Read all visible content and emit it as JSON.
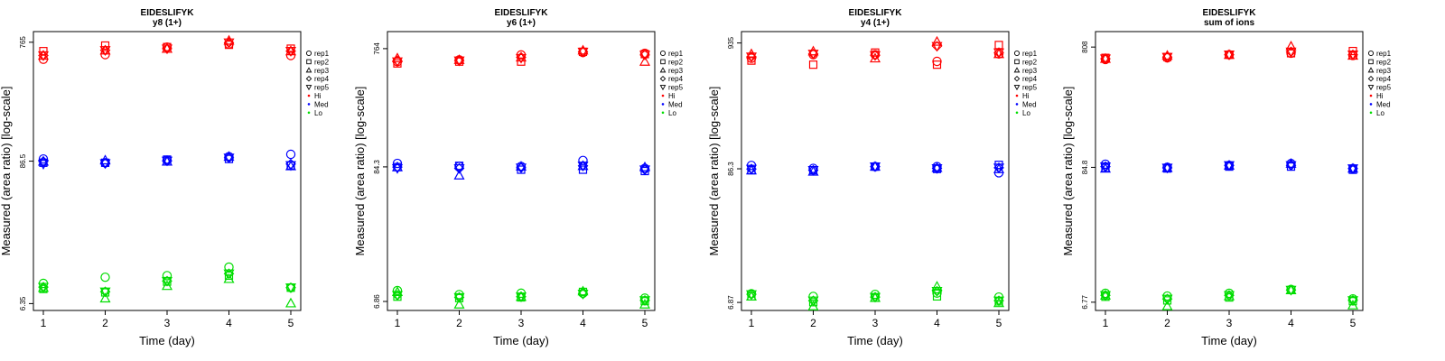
{
  "chart_data": [
    {
      "type": "scatter",
      "title": "EIDESLIFYK",
      "subtitle": "y8 (1+)",
      "xlabel": "Time (day)",
      "ylabel": "Measured (area ratio) [log-scale]",
      "x": [
        1,
        2,
        3,
        4,
        5
      ],
      "y_scale": "log",
      "yticks": [
        "6.35",
        "86.5",
        "765"
      ],
      "ylim": [
        5.6,
        930
      ],
      "legend_position": "right",
      "legend": [
        "rep1",
        "rep2",
        "rep3",
        "rep4",
        "rep5",
        "Hi",
        "Med",
        "Lo"
      ],
      "groups": [
        {
          "name": "Hi",
          "color": "#ff0000",
          "reps": {
            "rep1": [
              560,
              610,
              700,
              740,
              600
            ],
            "rep2": [
              650,
              720,
              700,
              730,
              680
            ],
            "rep3": [
              600,
              660,
              680,
              790,
              650
            ],
            "rep4": [
              600,
              660,
              680,
              760,
              650
            ],
            "rep5": [
              600,
              660,
              680,
              760,
              650
            ]
          }
        },
        {
          "name": "Med",
          "color": "#0000ff",
          "reps": {
            "rep1": [
              90,
              84,
              88,
              94,
              98
            ],
            "rep2": [
              84,
              84,
              89,
              90,
              80
            ],
            "rep3": [
              86,
              88,
              86,
              94,
              79
            ],
            "rep4": [
              86,
              83,
              87,
              92,
              82
            ],
            "rep5": [
              82,
              83,
              87,
              92,
              80
            ]
          }
        },
        {
          "name": "Lo",
          "color": "#00dd00",
          "reps": {
            "rep1": [
              9.2,
              10.3,
              10.6,
              12.4,
              8.5
            ],
            "rep2": [
              8.3,
              7.8,
              9.5,
              10.6,
              8.5
            ],
            "rep3": [
              8.5,
              7.0,
              8.8,
              10.0,
              6.4
            ],
            "rep4": [
              8.6,
              7.9,
              9.6,
              11.0,
              8.5
            ],
            "rep5": [
              8.6,
              7.9,
              9.6,
              11.0,
              8.5
            ]
          }
        }
      ]
    },
    {
      "type": "scatter",
      "title": "EIDESLIFYK",
      "subtitle": "y6 (1+)",
      "xlabel": "Time (day)",
      "ylabel": "Measured (area ratio) [log-scale]",
      "x": [
        1,
        2,
        3,
        4,
        5
      ],
      "y_scale": "log",
      "yticks": [
        "6.86",
        "84.3",
        "764"
      ],
      "ylim": [
        5.8,
        1050
      ],
      "legend_position": "right",
      "legend": [
        "rep1",
        "rep2",
        "rep3",
        "rep4",
        "rep5",
        "Hi",
        "Med",
        "Lo"
      ],
      "groups": [
        {
          "name": "Hi",
          "color": "#ff0000",
          "reps": {
            "rep1": [
              600,
              620,
              680,
              710,
              700
            ],
            "rep2": [
              580,
              600,
              600,
              720,
              690
            ],
            "rep3": [
              640,
              620,
              650,
              740,
              600
            ],
            "rep4": [
              610,
              610,
              650,
              720,
              680
            ],
            "rep5": [
              600,
              610,
              640,
              720,
              680
            ]
          }
        },
        {
          "name": "Med",
          "color": "#0000ff",
          "reps": {
            "rep1": [
              90,
              85,
              85,
              95,
              82
            ],
            "rep2": [
              84,
              86,
              80,
              80,
              78
            ],
            "rep3": [
              84,
              72,
              85,
              86,
              84
            ],
            "rep4": [
              84,
              82,
              83,
              86,
              80
            ],
            "rep5": [
              82,
              82,
              83,
              86,
              80
            ]
          }
        },
        {
          "name": "Lo",
          "color": "#00dd00",
          "reps": {
            "rep1": [
              8.4,
              7.8,
              8.0,
              8.0,
              7.3
            ],
            "rep2": [
              7.5,
              7.3,
              7.4,
              8.2,
              6.9
            ],
            "rep3": [
              8.2,
              6.5,
              7.5,
              8.3,
              6.5
            ],
            "rep4": [
              7.7,
              7.4,
              7.5,
              7.9,
              7.0
            ],
            "rep5": [
              7.7,
              7.4,
              7.5,
              7.9,
              7.0
            ]
          }
        }
      ]
    },
    {
      "type": "scatter",
      "title": "EIDESLIFYK",
      "subtitle": "y4 (1+)",
      "xlabel": "Time (day)",
      "ylabel": "Measured (area ratio) [log-scale]",
      "x": [
        1,
        2,
        3,
        4,
        5
      ],
      "y_scale": "log",
      "yticks": [
        "6.87",
        "86.3",
        "935"
      ],
      "ylim": [
        5.9,
        1160
      ],
      "legend_position": "right",
      "legend": [
        "rep1",
        "rep2",
        "rep3",
        "rep4",
        "rep5",
        "Hi",
        "Med",
        "Lo"
      ],
      "groups": [
        {
          "name": "Hi",
          "color": "#ff0000",
          "reps": {
            "rep1": [
              700,
              750,
              750,
              660,
              760
            ],
            "rep2": [
              670,
              620,
              780,
              620,
              900
            ],
            "rep3": [
              760,
              800,
              700,
              960,
              760
            ],
            "rep4": [
              720,
              760,
              740,
              880,
              780
            ],
            "rep5": [
              720,
              760,
              740,
              880,
              780
            ]
          }
        },
        {
          "name": "Med",
          "color": "#0000ff",
          "reps": {
            "rep1": [
              92,
              87,
              90,
              90,
              80
            ],
            "rep2": [
              84,
              84,
              90,
              86,
              93
            ],
            "rep3": [
              84,
              82,
              90,
              88,
              86
            ],
            "rep4": [
              86,
              84,
              90,
              87,
              88
            ],
            "rep5": [
              86,
              84,
              90,
              87,
              88
            ]
          }
        },
        {
          "name": "Lo",
          "color": "#00dd00",
          "reps": {
            "rep1": [
              8.1,
              7.7,
              8.0,
              8.2,
              7.6
            ],
            "rep2": [
              7.7,
              6.9,
              7.5,
              7.7,
              7.0
            ],
            "rep3": [
              7.7,
              6.4,
              7.5,
              9.3,
              6.8
            ],
            "rep4": [
              8.0,
              7.1,
              7.6,
              8.5,
              7.1
            ],
            "rep5": [
              8.0,
              7.1,
              7.6,
              8.5,
              7.1
            ]
          }
        }
      ]
    },
    {
      "type": "scatter",
      "title": "EIDESLIFYK",
      "subtitle": "sum of ions",
      "xlabel": "Time (day)",
      "ylabel": "Measured (area ratio) [log-scale]",
      "x": [
        1,
        2,
        3,
        4,
        5
      ],
      "y_scale": "log",
      "yticks": [
        "6.77",
        "84.8",
        "808"
      ],
      "ylim": [
        5.8,
        1080
      ],
      "legend_position": "right",
      "legend": [
        "rep1",
        "rep2",
        "rep3",
        "rep4",
        "rep5",
        "Hi",
        "Med",
        "Lo"
      ],
      "groups": [
        {
          "name": "Hi",
          "color": "#ff0000",
          "reps": {
            "rep1": [
              640,
              660,
              700,
              720,
              690
            ],
            "rep2": [
              660,
              670,
              700,
              720,
              750
            ],
            "rep3": [
              650,
              690,
              700,
              820,
              690
            ],
            "rep4": [
              650,
              670,
              700,
              740,
              700
            ],
            "rep5": [
              650,
              670,
              700,
              740,
              700
            ]
          }
        },
        {
          "name": "Med",
          "color": "#0000ff",
          "reps": {
            "rep1": [
              90,
              85,
              88,
              91,
              83
            ],
            "rep2": [
              84,
              83,
              86,
              86,
              81
            ],
            "rep3": [
              83,
              84,
              88,
              91,
              83
            ],
            "rep4": [
              86,
              84,
              88,
              88,
              83
            ],
            "rep5": [
              86,
              84,
              88,
              88,
              83
            ]
          }
        },
        {
          "name": "Lo",
          "color": "#00dd00",
          "reps": {
            "rep1": [
              8.0,
              7.6,
              8.0,
              8.6,
              7.2
            ],
            "rep2": [
              7.5,
              7.0,
              7.4,
              8.5,
              6.9
            ],
            "rep3": [
              7.7,
              6.3,
              7.6,
              8.5,
              6.4
            ],
            "rep4": [
              7.7,
              7.2,
              7.7,
              8.5,
              7.0
            ],
            "rep5": [
              7.7,
              7.2,
              7.7,
              8.5,
              7.0
            ]
          }
        }
      ]
    }
  ]
}
